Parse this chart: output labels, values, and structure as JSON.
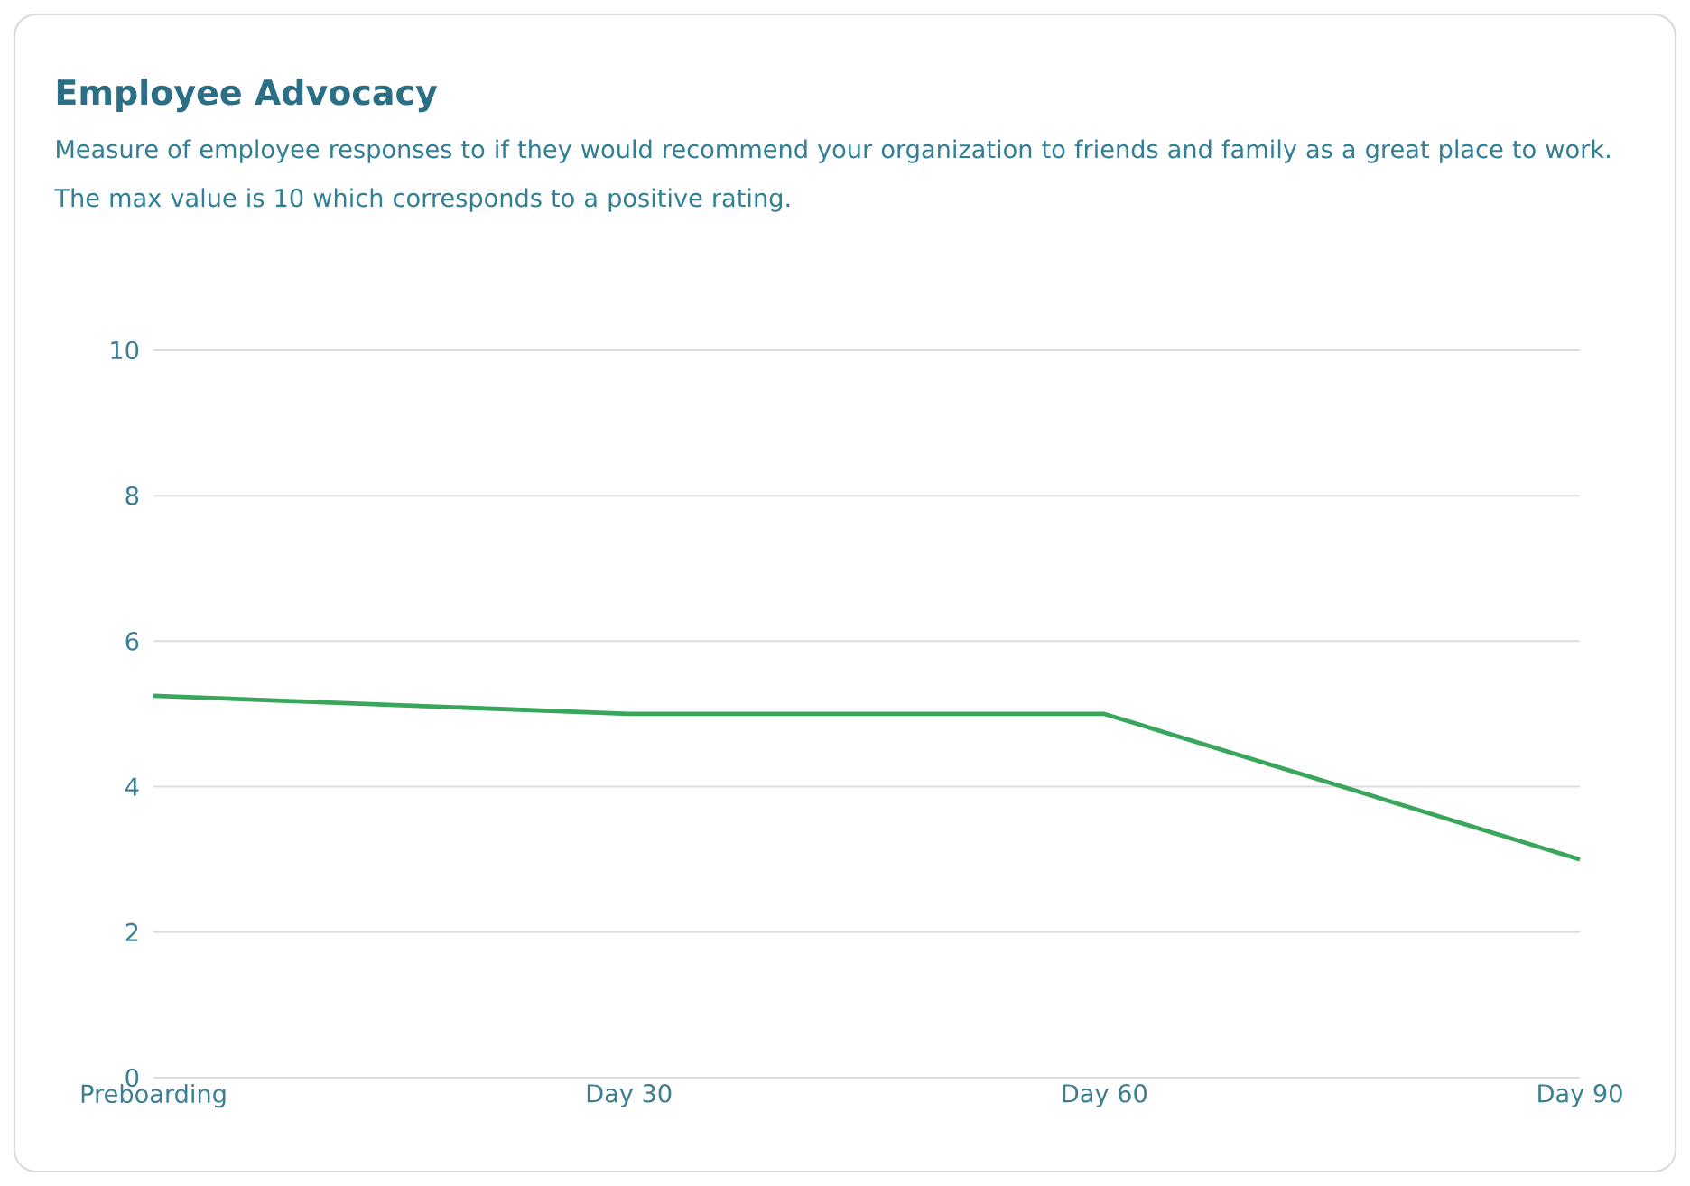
{
  "chart_data": {
    "type": "line",
    "title": "Employee Advocacy",
    "subtitle": "Measure of employee responses to if they would recommend your organization to friends and family as a great place to work. The max value is 10 which corresponds to a positive rating.",
    "categories": [
      "Preboarding",
      "Day 30",
      "Day 60",
      "Day 90"
    ],
    "series": [
      {
        "color": "#3aa65c",
        "values": [
          5.25,
          5,
          5,
          3
        ]
      }
    ],
    "ylim": [
      0,
      10
    ],
    "yticks": [
      0,
      2,
      4,
      6,
      8,
      10
    ],
    "grid": "y"
  }
}
